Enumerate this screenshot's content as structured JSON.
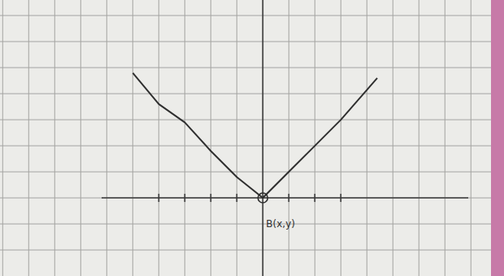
{
  "chart_data": {
    "type": "line",
    "annotation": "B(x,y)",
    "x": [
      -5,
      -4,
      -3,
      -2,
      -1,
      0,
      1,
      2,
      3,
      4.4
    ],
    "series": [
      {
        "color": "#2f2f2f",
        "values": [
          4.8,
          3.6,
          2.9,
          1.8,
          0.8,
          0,
          1,
          2,
          3,
          4.6
        ]
      }
    ],
    "xlim": [
      -6.2,
      7.9
    ],
    "ylim": [
      -3,
      7.6
    ],
    "xticks": [
      -4,
      -3,
      -2,
      -1,
      1,
      2,
      3
    ],
    "yticks": [],
    "tick_labels": false
  }
}
